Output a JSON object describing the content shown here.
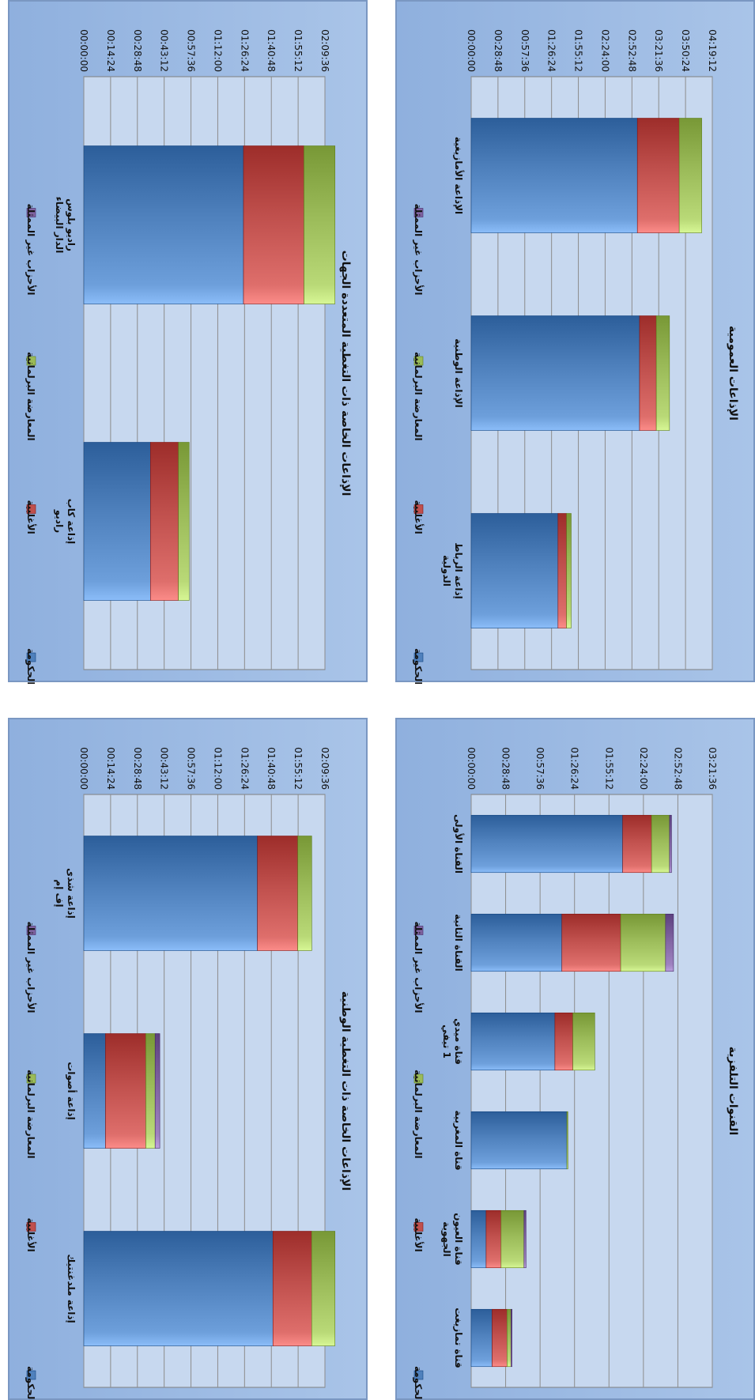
{
  "legend": {
    "items": [
      {
        "key": "government",
        "label": "الحكومة",
        "color": "#4f81bd"
      },
      {
        "key": "majority",
        "label": "الأغلبية",
        "color": "#c0504d"
      },
      {
        "key": "parliamentary_opposition",
        "label": "المعارضة البرلمانية",
        "color": "#9bbb59"
      },
      {
        "key": "non_represented_parties",
        "label": "الأحزاب غير الممثلة",
        "color": "#8064a2"
      }
    ]
  },
  "chart_data": [
    {
      "type": "bar",
      "stacked": true,
      "title": "الإذاعات العمومية",
      "y_tick_labels": [
        "00:00:00",
        "00:28:48",
        "00:57:36",
        "01:26:24",
        "01:55:12",
        "02:24:00",
        "02:52:48",
        "03:21:36",
        "03:50:24",
        "04:19:12"
      ],
      "ylim": [
        "00:00:00",
        "04:19:12"
      ],
      "ylim_seconds": [
        0,
        15552
      ],
      "categories": [
        "الإذاعة الأمازيغية",
        "الإذاعة الوطنية",
        "إذاعة الرباط الدولية"
      ],
      "series": [
        {
          "name": "الحكومة",
          "values": [
            10720,
            10860,
            5600
          ]
        },
        {
          "name": "الأغلبية",
          "values": [
            2700,
            1080,
            550
          ]
        },
        {
          "name": "المعارضة البرلمانية",
          "values": [
            1450,
            850,
            300
          ]
        },
        {
          "name": "الأحزاب غير الممثلة",
          "values": [
            0,
            0,
            0
          ]
        }
      ],
      "grid": true,
      "legend": "bottom"
    },
    {
      "type": "bar",
      "stacked": true,
      "title": "القنوات التلفزية",
      "y_tick_labels": [
        "00:00:00",
        "00:28:48",
        "00:57:36",
        "01:26:24",
        "01:55:12",
        "02:24:00",
        "02:52:48",
        "03:21:36"
      ],
      "ylim": [
        "00:00:00",
        "03:21:36"
      ],
      "ylim_seconds": [
        0,
        12096
      ],
      "categories": [
        "القناة الأولى",
        "القناة الثانية",
        "قناة ميدي 1 تيفي",
        "قناة المغربية",
        "قناة العيون الجهوية",
        "قناة تمازيغت"
      ],
      "series": [
        {
          "name": "الحكومة",
          "values": [
            7600,
            4550,
            4200,
            4800,
            750,
            1050
          ]
        },
        {
          "name": "الأغلبية",
          "values": [
            1450,
            2950,
            900,
            0,
            750,
            750
          ]
        },
        {
          "name": "المعارضة البرلمانية",
          "values": [
            900,
            2250,
            1100,
            50,
            1150,
            200
          ]
        },
        {
          "name": "الأحزاب غير الممثلة",
          "values": [
            100,
            400,
            0,
            0,
            100,
            50
          ]
        }
      ],
      "grid": true,
      "legend": "bottom"
    },
    {
      "type": "bar",
      "stacked": true,
      "title": "الإذاعات الخاصة ذات التغطية المتعددة الجهات",
      "y_tick_labels": [
        "00:00:00",
        "00:14:24",
        "00:28:48",
        "00:43:12",
        "00:57:36",
        "01:12:00",
        "01:26:24",
        "01:40:48",
        "01:55:12",
        "02:09:36"
      ],
      "ylim": [
        "00:00:00",
        "02:09:36"
      ],
      "ylim_seconds": [
        0,
        7776
      ],
      "categories": [
        "راديو بلوس الدار البيضاء",
        "إذاعة كاب راديو"
      ],
      "series": [
        {
          "name": "الحكومة",
          "values": [
            5150,
            2150
          ]
        },
        {
          "name": "الأغلبية",
          "values": [
            1950,
            900
          ]
        },
        {
          "name": "المعارضة البرلمانية",
          "values": [
            1000,
            350
          ]
        },
        {
          "name": "الأحزاب غير الممثلة",
          "values": [
            0,
            0
          ]
        }
      ],
      "grid": true,
      "legend": "bottom"
    },
    {
      "type": "bar",
      "stacked": true,
      "title": "الإذاعات الخاصة ذات التغطية الوطنية",
      "y_tick_labels": [
        "00:00:00",
        "00:14:24",
        "00:28:48",
        "00:43:12",
        "00:57:36",
        "01:12:00",
        "01:26:24",
        "01:40:48",
        "01:55:12",
        "02:09:36"
      ],
      "ylim": [
        "00:00:00",
        "02:09:36"
      ],
      "ylim_seconds": [
        0,
        7776
      ],
      "categories": [
        "إذاعة شذى إف إم",
        "إذاعة أصوات",
        "إذاعة ملدغنتيك"
      ],
      "series": [
        {
          "name": "الحكومة",
          "values": [
            5600,
            700,
            6100
          ]
        },
        {
          "name": "الأغلبية",
          "values": [
            1300,
            1300,
            1250
          ]
        },
        {
          "name": "المعارضة البرلمانية",
          "values": [
            450,
            300,
            750
          ]
        },
        {
          "name": "الأحزاب غير الممثلة",
          "values": [
            0,
            150,
            0
          ]
        }
      ],
      "grid": true,
      "legend": "bottom"
    }
  ]
}
